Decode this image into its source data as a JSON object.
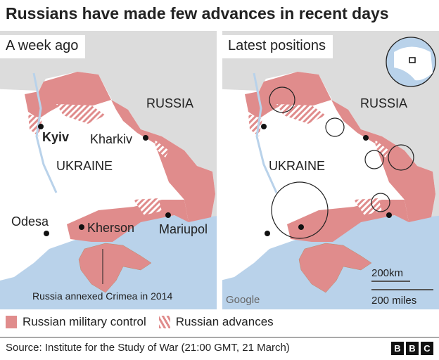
{
  "title": "Russians have made few advances in recent days",
  "left_panel": {
    "label": "A week ago",
    "cities": [
      "Kyiv",
      "Kharkiv",
      "Odesa",
      "Kherson",
      "Mariupol"
    ],
    "country_labels": [
      "RUSSIA",
      "UKRAINE"
    ],
    "annotation": "Russia annexed Crimea in 2014"
  },
  "right_panel": {
    "label": "Latest positions",
    "country_labels": [
      "RUSSIA",
      "UKRAINE"
    ],
    "scale_km": "200km",
    "scale_miles": "200 miles",
    "attribution": "Google"
  },
  "legend": {
    "control": "Russian military control",
    "advances": "Russian advances"
  },
  "colors": {
    "control": "#e08c8c",
    "land": "#ffffff",
    "foreign": "#dcdcdc",
    "sea": "#b9d2ea"
  },
  "source": "Source: Institute for the Study of War (21:00 GMT, 21 March)",
  "logo": [
    "B",
    "B",
    "C"
  ]
}
